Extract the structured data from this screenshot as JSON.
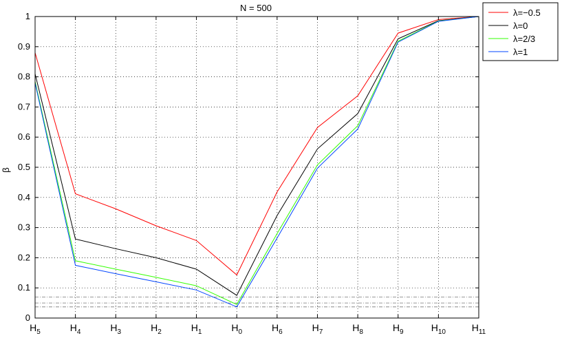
{
  "chart_data": {
    "type": "line",
    "title": "N = 500",
    "xlabel": "",
    "ylabel": "β",
    "ylim": [
      0,
      1
    ],
    "yticks": [
      "0",
      "0.1",
      "0.2",
      "0.3",
      "0.4",
      "0.5",
      "0.6",
      "0.7",
      "0.8",
      "0.9",
      "1"
    ],
    "categories": [
      {
        "base": "H",
        "sub": "5"
      },
      {
        "base": "H",
        "sub": "4"
      },
      {
        "base": "H",
        "sub": "3"
      },
      {
        "base": "H",
        "sub": "2"
      },
      {
        "base": "H",
        "sub": "1"
      },
      {
        "base": "H",
        "sub": "0"
      },
      {
        "base": "H",
        "sub": "6"
      },
      {
        "base": "H",
        "sub": "7"
      },
      {
        "base": "H",
        "sub": "8"
      },
      {
        "base": "H",
        "sub": "9"
      },
      {
        "base": "H",
        "sub": "10"
      },
      {
        "base": "H",
        "sub": "11"
      }
    ],
    "grid": true,
    "legend_position": "outside top-right",
    "series": [
      {
        "name": "λ=−0.5",
        "color": "#ff0000",
        "values": [
          0.88,
          0.412,
          0.362,
          0.306,
          0.257,
          0.143,
          0.418,
          0.632,
          0.737,
          0.945,
          0.99,
          1.0
        ]
      },
      {
        "name": "λ=0",
        "color": "#000000",
        "values": [
          0.81,
          0.262,
          0.23,
          0.2,
          0.162,
          0.075,
          0.34,
          0.561,
          0.678,
          0.926,
          0.986,
          1.0
        ]
      },
      {
        "name": "λ=2/3",
        "color": "#33ff00",
        "values": [
          0.785,
          0.19,
          0.162,
          0.135,
          0.107,
          0.045,
          0.28,
          0.508,
          0.638,
          0.918,
          0.985,
          1.0
        ]
      },
      {
        "name": "λ=1",
        "color": "#0044ff",
        "values": [
          0.78,
          0.175,
          0.147,
          0.12,
          0.093,
          0.037,
          0.265,
          0.497,
          0.627,
          0.915,
          0.984,
          1.0
        ]
      }
    ],
    "reference_lines": [
      {
        "y": 0.07,
        "color": "#777777"
      },
      {
        "y": 0.05,
        "color": "#777777"
      },
      {
        "y": 0.037,
        "color": "#777777"
      }
    ]
  }
}
